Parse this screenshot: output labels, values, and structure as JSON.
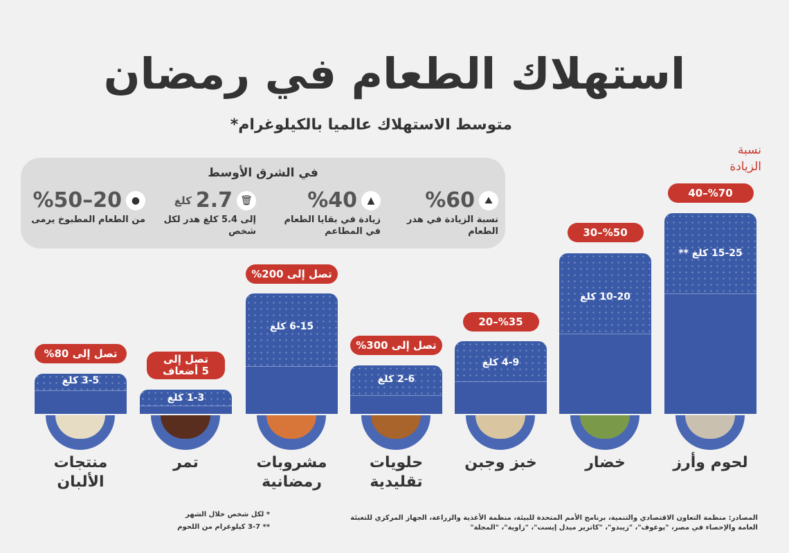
{
  "title": "استهلاك الطعام في رمضان",
  "subtitle": "متوسط الاستهلاك عالميا بالكيلوغرام*",
  "increase_heading": "نسبة الزيادة",
  "middle_east": {
    "title": "في الشرق الأوسط",
    "stats": [
      {
        "icon": "food-waste-icon",
        "value": "%60",
        "unit": "",
        "desc": "نسبة الزيادة في هدر الطعام"
      },
      {
        "icon": "serving-dish-icon",
        "value": "%40",
        "unit": "",
        "desc": "زيادة في بقايا الطعام في المطاعم"
      },
      {
        "icon": "trash-bin-icon",
        "value": "2.7",
        "unit": "كلغ",
        "desc": "إلى 5.4 كلغ هدر لكل شخص"
      },
      {
        "icon": "cooked-food-icon",
        "value": "%50–20",
        "unit": "",
        "desc": "من الطعام المطبوخ يرمى"
      }
    ]
  },
  "categories": [
    {
      "name": "لحوم وأرز",
      "amount": "15-25 كلغ **",
      "increase": "%70–40",
      "color": "#c9c0b0"
    },
    {
      "name": "خضار",
      "amount": "10-20 كلغ",
      "increase": "%50–30",
      "color": "#7a9a4a"
    },
    {
      "name": "خبز وجبن",
      "amount": "4-9 كلغ",
      "increase": "%35–20",
      "color": "#d9c6a0"
    },
    {
      "name": "حلويات تقليدية",
      "amount": "2-6 كلغ",
      "increase": "تصل إلى 300%",
      "color": "#a8642a"
    },
    {
      "name": "مشروبات رمضانية",
      "amount": "6-15 كلغ",
      "increase": "تصل إلى 200%",
      "color": "#d8763a"
    },
    {
      "name": "تمر",
      "amount": "1-3 كلغ",
      "increase": "تصل إلى 5 أضعاف",
      "color": "#5a2e1e"
    },
    {
      "name": "منتجات الألبان",
      "amount": "3-5 كلغ",
      "increase": "تصل إلى 80%",
      "color": "#e6dcc4"
    }
  ],
  "footnotes": [
    "*  لكل شخص خلال الشهر",
    "**  3-7 كيلوغرام من اللحوم"
  ],
  "sources": "المصادر: منظمة التعاون الاقتصادي والتنمية، برنامج الأمم المتحدة للبيئة، منظمة الأغذية والزراعة، الجهاز المركزي للتعبئة العامة والإحصاء في مصر، \"يوغوف\"، \"زيبدو\"، \"كاترير ميدل إيست\"، \"زاوية\"، \"المجلة\""
}
